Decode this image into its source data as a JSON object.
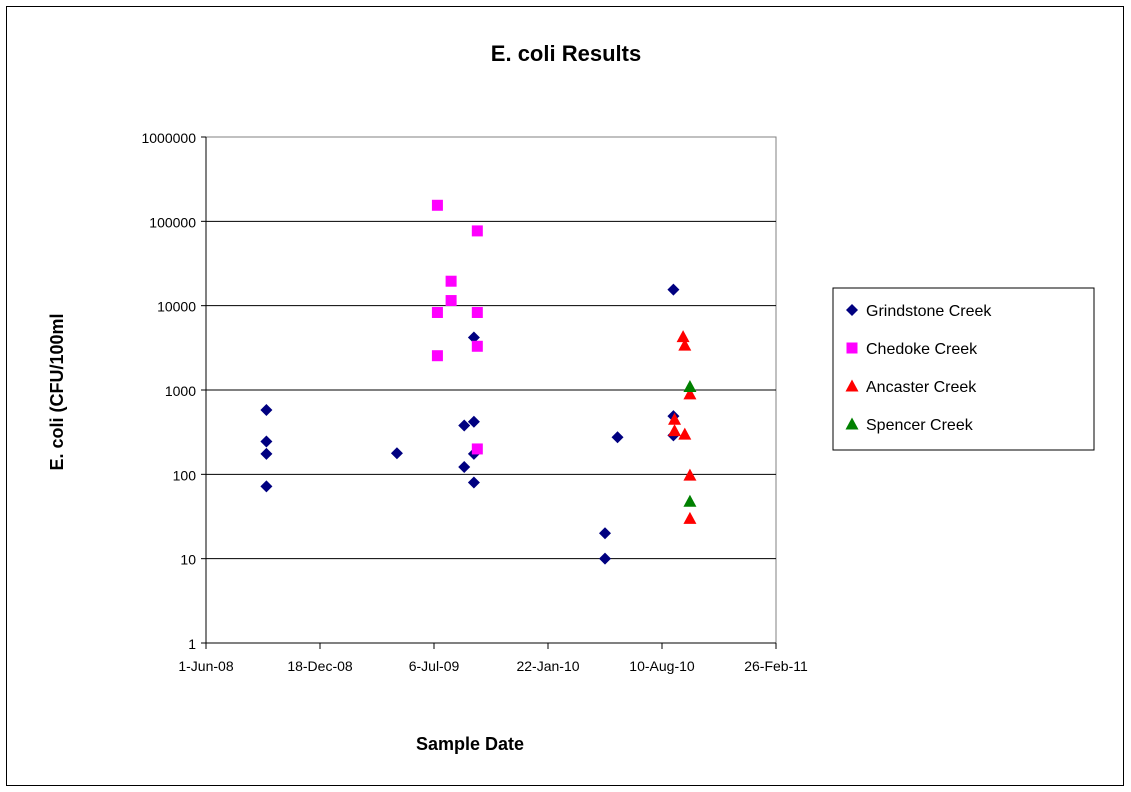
{
  "chart_data": {
    "type": "scatter",
    "title": "E. coli Results",
    "xlabel": "Sample Date",
    "ylabel": "E. coli (CFU/100ml",
    "y_scale": "log",
    "ylim": [
      1,
      1000000
    ],
    "y_ticks": [
      "1",
      "10",
      "100",
      "1000",
      "10000",
      "100000",
      "1000000"
    ],
    "xlim": [
      "2008-06-01",
      "2011-02-26"
    ],
    "x_ticks": [
      {
        "date": "2008-06-01",
        "label": "1-Jun-08"
      },
      {
        "date": "2008-12-18",
        "label": "18-Dec-08"
      },
      {
        "date": "2009-07-06",
        "label": "6-Jul-09"
      },
      {
        "date": "2010-01-22",
        "label": "22-Jan-10"
      },
      {
        "date": "2010-08-10",
        "label": "10-Aug-10"
      },
      {
        "date": "2011-02-26",
        "label": "26-Feb-11"
      }
    ],
    "grid": "horizontal",
    "legend_position": "right",
    "series": [
      {
        "name": "Grindstone Creek",
        "marker": "diamond",
        "color": "#000080",
        "points": [
          {
            "x": "2008-09-15",
            "y": 580
          },
          {
            "x": "2008-09-15",
            "y": 245
          },
          {
            "x": "2008-09-15",
            "y": 175
          },
          {
            "x": "2008-09-15",
            "y": 72
          },
          {
            "x": "2009-05-02",
            "y": 178
          },
          {
            "x": "2009-08-28",
            "y": 380
          },
          {
            "x": "2009-08-28",
            "y": 122
          },
          {
            "x": "2009-09-14",
            "y": 4200
          },
          {
            "x": "2009-09-14",
            "y": 420
          },
          {
            "x": "2009-09-14",
            "y": 175
          },
          {
            "x": "2009-09-14",
            "y": 80
          },
          {
            "x": "2010-05-02",
            "y": 20
          },
          {
            "x": "2010-05-02",
            "y": 10
          },
          {
            "x": "2010-05-24",
            "y": 275
          },
          {
            "x": "2010-08-30",
            "y": 15500
          },
          {
            "x": "2010-08-30",
            "y": 490
          },
          {
            "x": "2010-08-30",
            "y": 290
          }
        ]
      },
      {
        "name": "Chedoke Creek",
        "marker": "square",
        "color": "#ff00ff",
        "points": [
          {
            "x": "2009-07-12",
            "y": 155000
          },
          {
            "x": "2009-07-12",
            "y": 8300
          },
          {
            "x": "2009-07-12",
            "y": 2550
          },
          {
            "x": "2009-08-05",
            "y": 19500
          },
          {
            "x": "2009-08-05",
            "y": 11500
          },
          {
            "x": "2009-09-20",
            "y": 77000
          },
          {
            "x": "2009-09-20",
            "y": 8300
          },
          {
            "x": "2009-09-20",
            "y": 3300
          },
          {
            "x": "2009-09-20",
            "y": 200
          }
        ]
      },
      {
        "name": "Ancaster Creek",
        "marker": "triangle",
        "color": "#ff0000",
        "points": [
          {
            "x": "2010-09-01",
            "y": 450
          },
          {
            "x": "2010-09-01",
            "y": 330
          },
          {
            "x": "2010-09-16",
            "y": 4300
          },
          {
            "x": "2010-09-19",
            "y": 3400
          },
          {
            "x": "2010-09-19",
            "y": 300
          },
          {
            "x": "2010-09-28",
            "y": 900
          },
          {
            "x": "2010-09-28",
            "y": 98
          },
          {
            "x": "2010-09-28",
            "y": 30
          }
        ]
      },
      {
        "name": "Spencer Creek",
        "marker": "triangle",
        "color": "#008000",
        "points": [
          {
            "x": "2010-09-28",
            "y": 1100
          },
          {
            "x": "2010-09-28",
            "y": 48
          }
        ]
      }
    ]
  }
}
